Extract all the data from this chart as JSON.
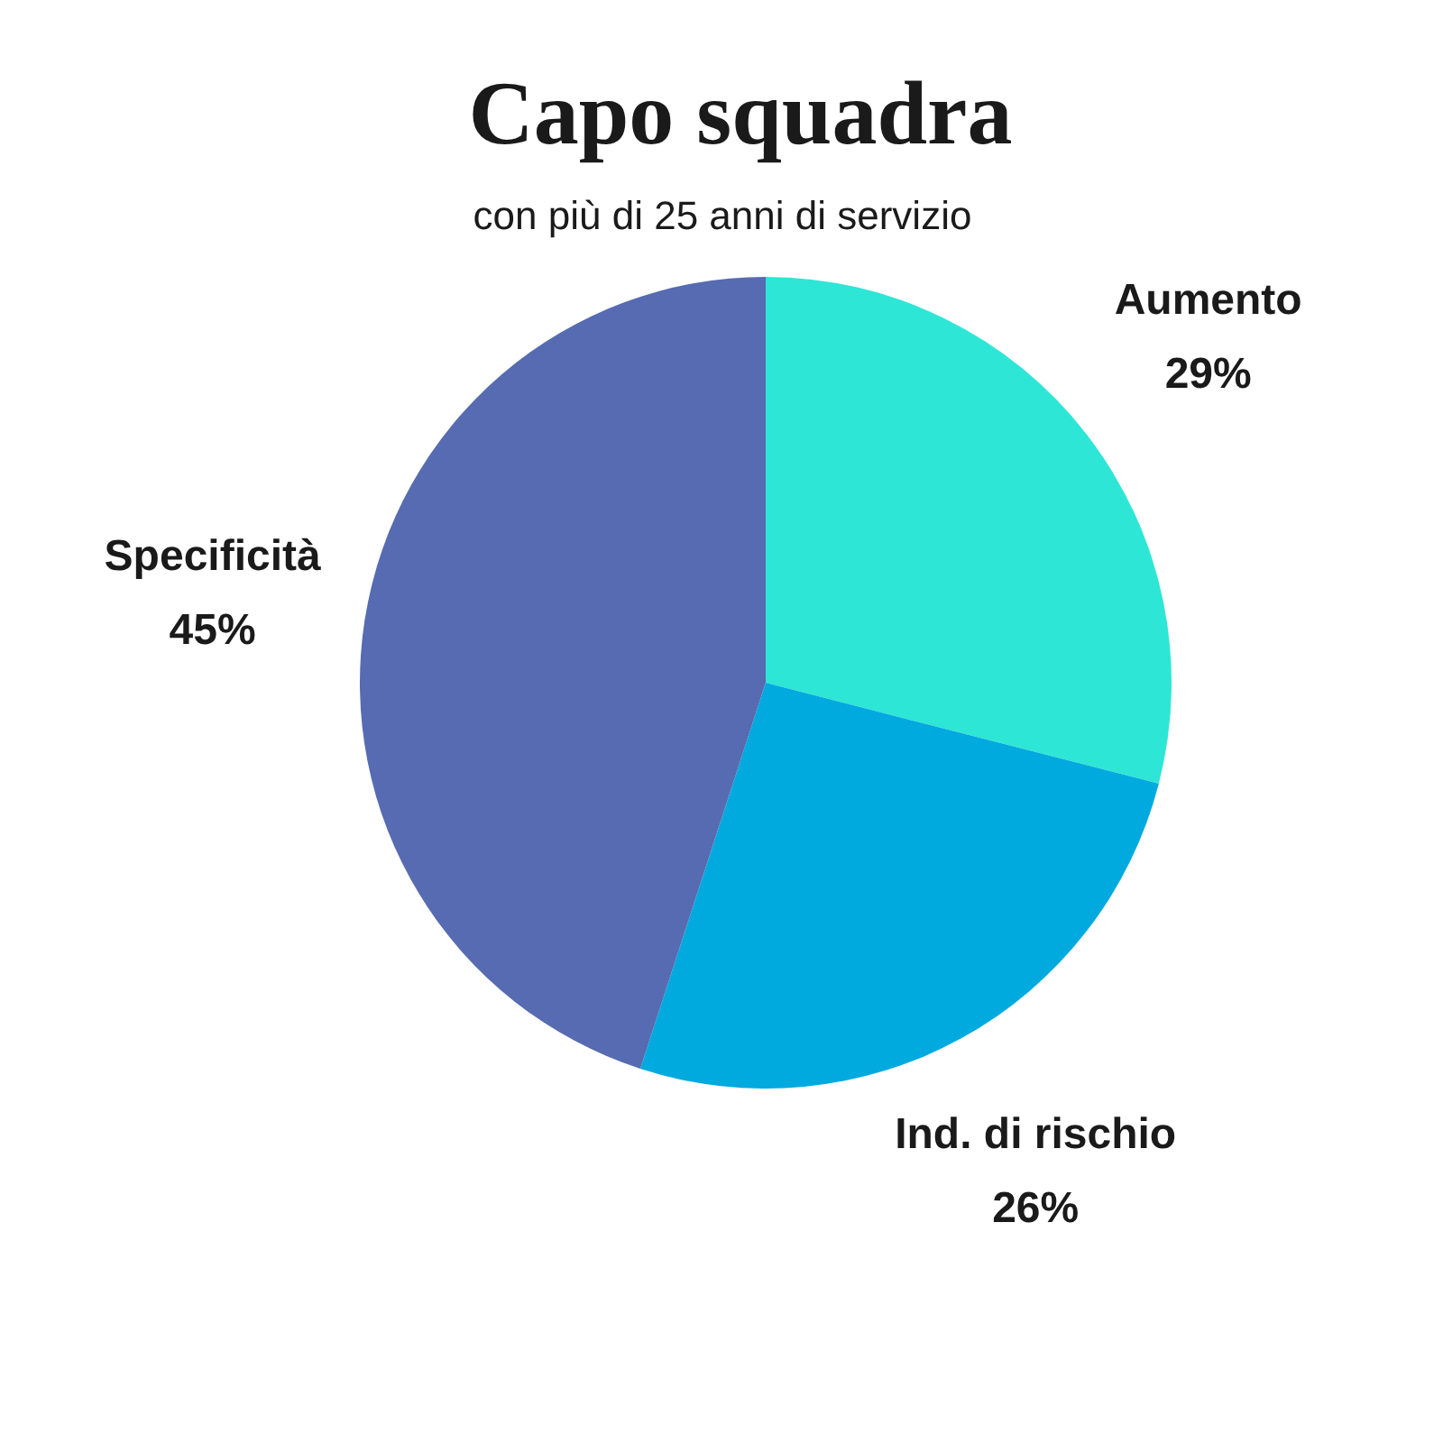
{
  "chart_data": {
    "type": "pie",
    "title": "Capo squadra",
    "subtitle": "con più di 25 anni di servizio",
    "categories": [
      "Aumento",
      "Ind. di rischio",
      "Specificità"
    ],
    "values": [
      29,
      26,
      45
    ],
    "colors": [
      "#2ee6d6",
      "#00aadf",
      "#566bb1"
    ],
    "value_labels": [
      "29%",
      "26%",
      "45%"
    ]
  }
}
